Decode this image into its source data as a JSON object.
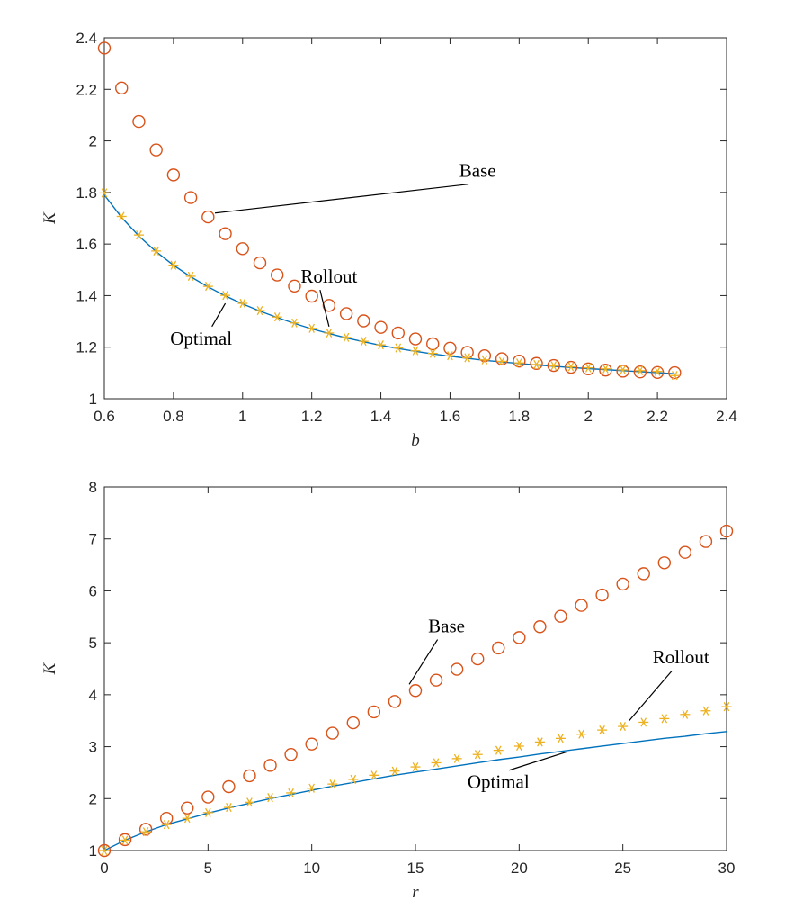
{
  "colors": {
    "base": "#D95319",
    "rollout": "#EDB120",
    "optimal": "#0072BD"
  },
  "chart_data": [
    {
      "type": "scatter",
      "xlabel": "b",
      "ylabel": "K",
      "xlim": [
        0.6,
        2.4
      ],
      "ylim": [
        1,
        2.4
      ],
      "xticks": [
        0.6,
        0.8,
        1,
        1.2,
        1.4,
        1.6,
        1.8,
        2,
        2.2,
        2.4
      ],
      "yticks": [
        1,
        1.2,
        1.4,
        1.6,
        1.8,
        2,
        2.2,
        2.4
      ],
      "xtick_labels": [
        "0.6",
        "0.8",
        "1",
        "1.2",
        "1.4",
        "1.6",
        "1.8",
        "2",
        "2.2",
        "2.4"
      ],
      "ytick_labels": [
        "1",
        "1.2",
        "1.4",
        "1.6",
        "1.8",
        "2",
        "2.2",
        "2.4"
      ],
      "x": [
        0.6,
        0.65,
        0.7,
        0.75,
        0.8,
        0.85,
        0.9,
        0.95,
        1.0,
        1.05,
        1.1,
        1.15,
        1.2,
        1.25,
        1.3,
        1.35,
        1.4,
        1.45,
        1.5,
        1.55,
        1.6,
        1.65,
        1.7,
        1.75,
        1.8,
        1.85,
        1.9,
        1.95,
        2.0,
        2.05,
        2.1,
        2.15,
        2.2,
        2.25
      ],
      "series": [
        {
          "name": "Base",
          "marker": "circle",
          "values": [
            2.36,
            2.205,
            2.075,
            1.965,
            1.868,
            1.78,
            1.705,
            1.64,
            1.582,
            1.527,
            1.48,
            1.437,
            1.398,
            1.362,
            1.33,
            1.302,
            1.277,
            1.255,
            1.232,
            1.213,
            1.196,
            1.18,
            1.167,
            1.155,
            1.146,
            1.137,
            1.129,
            1.122,
            1.116,
            1.111,
            1.107,
            1.104,
            1.102,
            1.101
          ]
        },
        {
          "name": "Rollout",
          "marker": "asterisk",
          "values": [
            1.798,
            1.707,
            1.635,
            1.573,
            1.518,
            1.475,
            1.436,
            1.401,
            1.37,
            1.342,
            1.317,
            1.294,
            1.273,
            1.255,
            1.238,
            1.223,
            1.209,
            1.197,
            1.186,
            1.176,
            1.167,
            1.159,
            1.151,
            1.145,
            1.139,
            1.133,
            1.128,
            1.124,
            1.12,
            1.116,
            1.112,
            1.109,
            1.106,
            1.09
          ]
        },
        {
          "name": "Optimal",
          "marker": "line",
          "values": [
            1.79,
            1.703,
            1.631,
            1.57,
            1.518,
            1.473,
            1.434,
            1.399,
            1.368,
            1.34,
            1.315,
            1.292,
            1.271,
            1.253,
            1.236,
            1.221,
            1.207,
            1.195,
            1.184,
            1.174,
            1.165,
            1.157,
            1.149,
            1.143,
            1.137,
            1.131,
            1.126,
            1.121,
            1.117,
            1.113,
            1.109,
            1.105,
            1.101,
            1.097
          ]
        }
      ],
      "annotations": [
        {
          "text": "Base",
          "x": 1.68,
          "y": 1.86,
          "to_x": 0.92,
          "to_y": 1.72
        },
        {
          "text": "Rollout",
          "x": 1.25,
          "y": 1.45,
          "to_x": 1.25,
          "to_y": 1.28
        },
        {
          "text": "Optimal",
          "x": 0.88,
          "y": 1.21,
          "to_x": 0.95,
          "to_y": 1.37
        }
      ]
    },
    {
      "type": "scatter",
      "xlabel": "r",
      "ylabel": "K",
      "xlim": [
        0,
        30
      ],
      "ylim": [
        1,
        8
      ],
      "xticks": [
        0,
        5,
        10,
        15,
        20,
        25,
        30
      ],
      "yticks": [
        1,
        2,
        3,
        4,
        5,
        6,
        7,
        8
      ],
      "xtick_labels": [
        "0",
        "5",
        "10",
        "15",
        "20",
        "25",
        "30"
      ],
      "ytick_labels": [
        "1",
        "2",
        "3",
        "4",
        "5",
        "6",
        "7",
        "8"
      ],
      "x": [
        0,
        1,
        2,
        3,
        4,
        5,
        6,
        7,
        8,
        9,
        10,
        11,
        12,
        13,
        14,
        15,
        16,
        17,
        18,
        19,
        20,
        21,
        22,
        23,
        24,
        25,
        26,
        27,
        28,
        29,
        30
      ],
      "series": [
        {
          "name": "Base",
          "marker": "circle",
          "values": [
            1.0,
            1.21,
            1.41,
            1.62,
            1.82,
            2.03,
            2.23,
            2.44,
            2.64,
            2.85,
            3.05,
            3.26,
            3.46,
            3.67,
            3.87,
            4.08,
            4.28,
            4.49,
            4.69,
            4.9,
            5.1,
            5.31,
            5.51,
            5.72,
            5.92,
            6.13,
            6.33,
            6.54,
            6.74,
            6.95,
            7.15
          ]
        },
        {
          "name": "Rollout",
          "marker": "asterisk",
          "values": [
            1.0,
            1.2,
            1.36,
            1.5,
            1.62,
            1.73,
            1.83,
            1.93,
            2.02,
            2.11,
            2.2,
            2.28,
            2.37,
            2.45,
            2.53,
            2.61,
            2.69,
            2.77,
            2.85,
            2.93,
            3.01,
            3.09,
            3.16,
            3.24,
            3.32,
            3.39,
            3.47,
            3.54,
            3.62,
            3.69,
            3.77
          ]
        },
        {
          "name": "Optimal",
          "marker": "line",
          "values": [
            1.0,
            1.2,
            1.36,
            1.5,
            1.61,
            1.72,
            1.82,
            1.91,
            2.0,
            2.08,
            2.16,
            2.24,
            2.31,
            2.38,
            2.45,
            2.51,
            2.57,
            2.63,
            2.69,
            2.75,
            2.8,
            2.86,
            2.91,
            2.96,
            3.01,
            3.06,
            3.11,
            3.16,
            3.2,
            3.25,
            3.29
          ]
        }
      ],
      "annotations": [
        {
          "text": "Base",
          "x": 16.5,
          "y": 5.2,
          "to_x": 14.7,
          "to_y": 4.2
        },
        {
          "text": "Rollout",
          "x": 27.8,
          "y": 4.6,
          "to_x": 25.3,
          "to_y": 3.5
        },
        {
          "text": "Optimal",
          "x": 19,
          "y": 2.2,
          "to_x": 22.3,
          "to_y": 2.9
        }
      ]
    }
  ]
}
